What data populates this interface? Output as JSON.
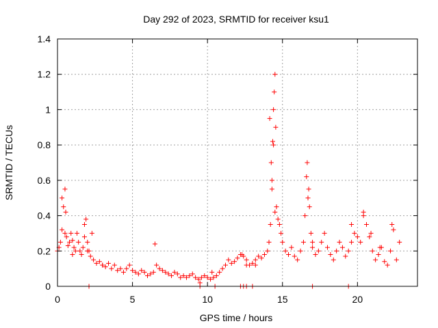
{
  "chart_data": {
    "type": "scatter",
    "title": "Day 292 of 2023, SRMTID for receiver ksu1",
    "xlabel": "GPS time / hours",
    "ylabel": "SRMTID / TECUs",
    "xlim": [
      0,
      24
    ],
    "ylim": [
      0,
      1.4
    ],
    "xticks": [
      0,
      5,
      10,
      15,
      20
    ],
    "yticks": [
      0,
      0.2,
      0.4,
      0.6,
      0.8,
      1,
      1.2,
      1.4
    ],
    "ytick_labels": [
      "0",
      "0.2",
      "0.4",
      "0.6",
      "0.8",
      "1",
      "1.2",
      "1.4"
    ],
    "grid": true,
    "marker": "+",
    "color": "#ff0000",
    "series": [
      {
        "name": "ksu1",
        "x": [
          0.0,
          0.1,
          0.2,
          0.3,
          0.4,
          0.5,
          0.55,
          0.6,
          0.7,
          0.8,
          0.9,
          1.0,
          1.1,
          1.2,
          1.3,
          1.4,
          1.5,
          1.6,
          1.7,
          1.8,
          1.9,
          2.0,
          2.1,
          2.2,
          2.4,
          2.6,
          2.8,
          3.0,
          3.2,
          3.4,
          3.6,
          3.8,
          4.0,
          4.2,
          4.4,
          4.6,
          4.8,
          5.0,
          5.2,
          5.4,
          5.6,
          5.8,
          6.0,
          6.2,
          6.4,
          6.6,
          6.8,
          7.0,
          7.2,
          7.4,
          7.6,
          7.8,
          8.0,
          8.2,
          8.4,
          8.6,
          8.8,
          9.0,
          9.2,
          9.4,
          9.6,
          9.8,
          10.0,
          10.2,
          10.4,
          10.6,
          10.8,
          11.0,
          11.2,
          11.4,
          11.6,
          11.8,
          12.0,
          12.2,
          12.4,
          12.6,
          12.8,
          13.0,
          13.2,
          13.4,
          13.6,
          13.8,
          14.0,
          14.1,
          14.2,
          14.3,
          14.35,
          14.4,
          14.45,
          14.5,
          14.55,
          14.6,
          14.7,
          14.8,
          14.9,
          15.0,
          15.2,
          15.4,
          15.6,
          15.8,
          16.0,
          16.2,
          16.4,
          16.5,
          16.6,
          16.65,
          16.7,
          16.8,
          16.9,
          17.0,
          17.2,
          17.4,
          17.6,
          17.8,
          18.0,
          18.2,
          18.4,
          18.6,
          18.8,
          19.0,
          19.2,
          19.4,
          19.6,
          19.8,
          20.0,
          20.2,
          20.4,
          20.6,
          20.8,
          21.0,
          21.2,
          21.4,
          21.6,
          21.8,
          22.0,
          22.2,
          22.4,
          22.6,
          22.8,
          0.3,
          0.5,
          1.0,
          1.8,
          2.0,
          2.3,
          3.0,
          6.5,
          9.5,
          10.3,
          12.3,
          12.6,
          13.2,
          14.15,
          14.25,
          14.3,
          14.4,
          14.5,
          16.75,
          17.0,
          19.6,
          20.4,
          20.9,
          21.5,
          22.3,
          2.1,
          9.5,
          10.5,
          12.2,
          12.4,
          12.6,
          13.0,
          17.0,
          19.4
        ],
        "y": [
          0.2,
          0.22,
          0.25,
          0.32,
          0.45,
          0.55,
          0.42,
          0.28,
          0.23,
          0.25,
          0.3,
          0.26,
          0.22,
          0.2,
          0.3,
          0.25,
          0.2,
          0.18,
          0.22,
          0.28,
          0.38,
          0.25,
          0.2,
          0.17,
          0.15,
          0.13,
          0.14,
          0.12,
          0.11,
          0.13,
          0.1,
          0.12,
          0.09,
          0.1,
          0.08,
          0.1,
          0.12,
          0.09,
          0.08,
          0.07,
          0.09,
          0.08,
          0.06,
          0.07,
          0.08,
          0.12,
          0.1,
          0.09,
          0.08,
          0.07,
          0.06,
          0.08,
          0.07,
          0.05,
          0.06,
          0.05,
          0.06,
          0.07,
          0.05,
          0.04,
          0.05,
          0.06,
          0.05,
          0.04,
          0.05,
          0.06,
          0.08,
          0.1,
          0.12,
          0.15,
          0.13,
          0.14,
          0.16,
          0.18,
          0.17,
          0.15,
          0.12,
          0.13,
          0.15,
          0.17,
          0.16,
          0.18,
          0.2,
          0.25,
          0.35,
          0.6,
          0.82,
          1.0,
          1.1,
          1.2,
          0.9,
          0.45,
          0.38,
          0.35,
          0.3,
          0.25,
          0.2,
          0.18,
          0.22,
          0.17,
          0.15,
          0.2,
          0.25,
          0.4,
          0.62,
          0.7,
          0.5,
          0.45,
          0.3,
          0.22,
          0.18,
          0.2,
          0.25,
          0.3,
          0.22,
          0.18,
          0.15,
          0.2,
          0.25,
          0.22,
          0.17,
          0.2,
          0.25,
          0.3,
          0.28,
          0.25,
          0.4,
          0.35,
          0.28,
          0.2,
          0.15,
          0.18,
          0.22,
          0.14,
          0.12,
          0.2,
          0.32,
          0.15,
          0.25,
          0.5,
          0.3,
          0.18,
          0.35,
          0.2,
          0.3,
          0.12,
          0.24,
          0.02,
          0.08,
          0.18,
          0.12,
          0.12,
          0.95,
          0.7,
          0.55,
          0.8,
          0.42,
          0.55,
          0.25,
          0.35,
          0.42,
          0.3,
          0.22,
          0.35,
          0.0,
          0.0,
          0.0,
          0.0,
          0.0,
          0.0,
          0.0,
          0.0,
          0.0
        ]
      }
    ]
  }
}
